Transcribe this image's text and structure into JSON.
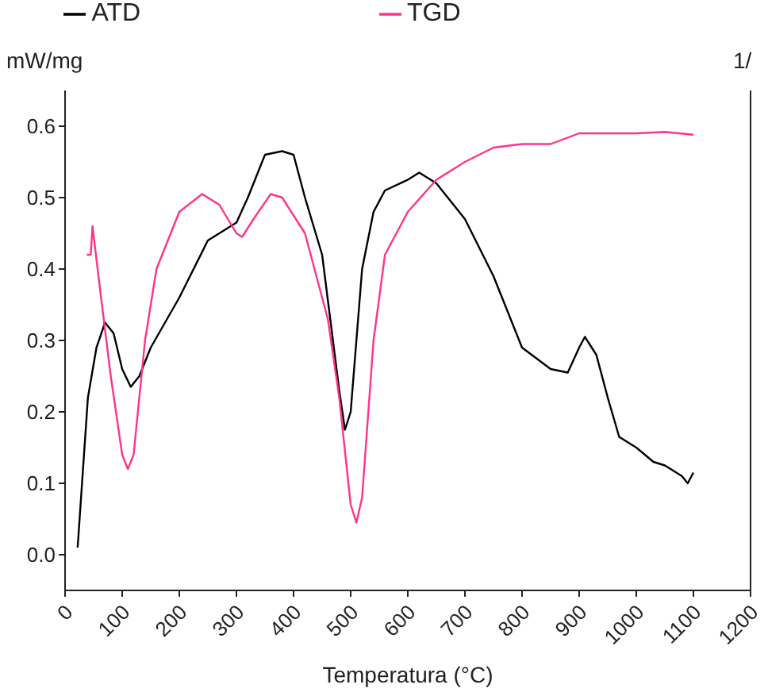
{
  "chart_data": {
    "type": "line",
    "xlabel": "Temperatura (°C)",
    "ylabel": "mW/mg",
    "y2label": "1/",
    "xlim": [
      0,
      1200
    ],
    "xticks": [
      0,
      100,
      200,
      300,
      400,
      500,
      600,
      700,
      800,
      900,
      1000,
      1100,
      1200
    ],
    "ylim": [
      -0.05,
      0.65
    ],
    "yticks": [
      {
        "value": 0,
        "label": "0.0"
      },
      0.1,
      0.2,
      0.3,
      0.4,
      0.5,
      0.6
    ],
    "legend": "top",
    "grid": false,
    "marker": "none",
    "line_style": "solid",
    "series": [
      {
        "name": "ATD",
        "color": "#000000",
        "x": [
          22,
          40,
          55,
          70,
          85,
          100,
          115,
          130,
          150,
          200,
          250,
          300,
          320,
          350,
          380,
          400,
          420,
          450,
          480,
          490,
          500,
          520,
          540,
          560,
          600,
          620,
          650,
          670,
          700,
          750,
          780,
          800,
          850,
          880,
          900,
          910,
          930,
          950,
          970,
          1000,
          1030,
          1050,
          1080,
          1090,
          1100
        ],
        "values": [
          0.01,
          0.22,
          0.29,
          0.325,
          0.31,
          0.26,
          0.235,
          0.25,
          0.29,
          0.36,
          0.44,
          0.465,
          0.5,
          0.56,
          0.565,
          0.56,
          0.5,
          0.42,
          0.23,
          0.175,
          0.2,
          0.4,
          0.48,
          0.51,
          0.525,
          0.535,
          0.52,
          0.5,
          0.47,
          0.39,
          0.33,
          0.29,
          0.26,
          0.255,
          0.29,
          0.305,
          0.28,
          0.22,
          0.165,
          0.15,
          0.13,
          0.125,
          0.11,
          0.1,
          0.115
        ]
      },
      {
        "name": "TGD",
        "color": "#ff3388",
        "x": [
          38,
          45,
          48,
          60,
          80,
          100,
          110,
          120,
          140,
          160,
          200,
          240,
          270,
          300,
          310,
          330,
          360,
          380,
          420,
          460,
          480,
          500,
          510,
          520,
          540,
          560,
          600,
          650,
          700,
          750,
          800,
          850,
          900,
          950,
          1000,
          1050,
          1100
        ],
        "values": [
          0.42,
          0.42,
          0.46,
          0.38,
          0.25,
          0.14,
          0.12,
          0.14,
          0.3,
          0.4,
          0.48,
          0.505,
          0.49,
          0.45,
          0.445,
          0.47,
          0.505,
          0.5,
          0.45,
          0.33,
          0.22,
          0.07,
          0.045,
          0.08,
          0.3,
          0.42,
          0.48,
          0.525,
          0.55,
          0.57,
          0.575,
          0.575,
          0.59,
          0.59,
          0.59,
          0.592,
          0.588
        ]
      }
    ]
  }
}
